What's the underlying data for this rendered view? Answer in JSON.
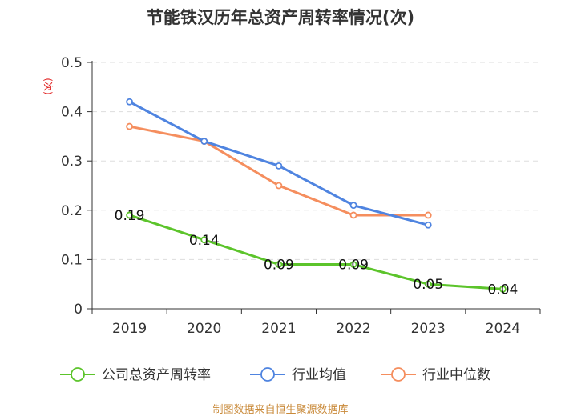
{
  "chart_data": {
    "type": "line",
    "title": "节能铁汉历年总资产周转率情况(次)",
    "ylabel": "(次)",
    "xlabel": "",
    "categories": [
      "2019",
      "2020",
      "2021",
      "2022",
      "2023",
      "2024"
    ],
    "ylim": [
      0,
      0.5
    ],
    "yticks": [
      "0",
      "0.1",
      "0.2",
      "0.3",
      "0.4",
      "0.5"
    ],
    "grid": true,
    "legend_position": "bottom",
    "series": [
      {
        "name": "公司总资产周转率",
        "color": "#5cc42b",
        "values": [
          0.19,
          0.14,
          0.09,
          0.09,
          0.05,
          0.04
        ],
        "labels": [
          "0.19",
          "0.14",
          "0.09",
          "0.09",
          "0.05",
          "0.04"
        ]
      },
      {
        "name": "行业均值",
        "color": "#4f84e0",
        "values": [
          0.42,
          0.34,
          0.29,
          0.21,
          0.17,
          null
        ]
      },
      {
        "name": "行业中位数",
        "color": "#f58e5e",
        "values": [
          0.37,
          0.34,
          0.25,
          0.19,
          0.19,
          null
        ]
      }
    ],
    "source": "制图数据来自恒生聚源数据库"
  }
}
